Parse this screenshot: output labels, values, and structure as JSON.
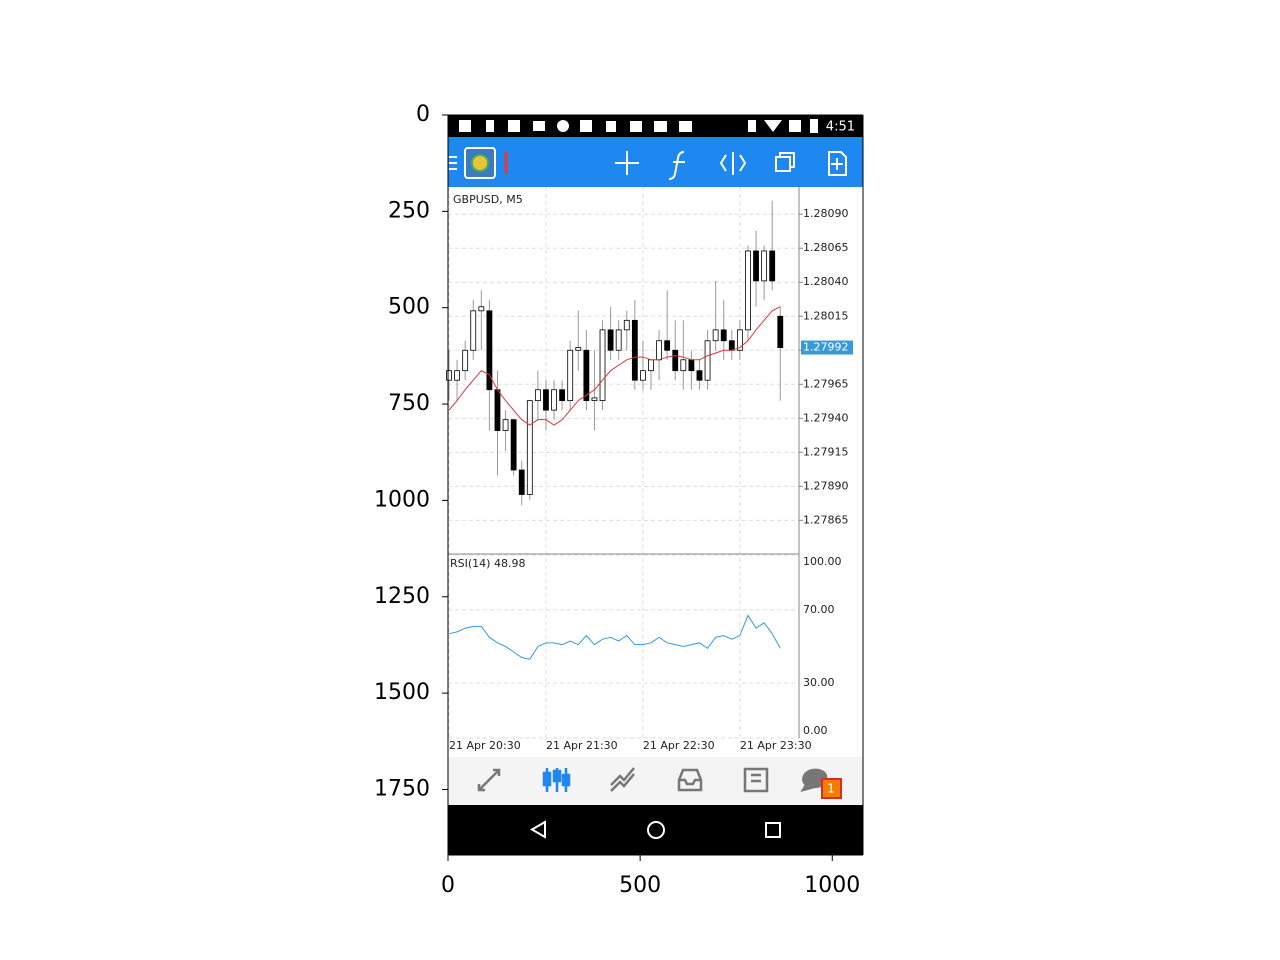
{
  "frame": {
    "xlim": [
      0,
      1080
    ],
    "ylim": [
      1920,
      0
    ],
    "xticks": [
      0,
      500,
      1000
    ],
    "yticks": [
      0,
      250,
      500,
      750,
      1000,
      1250,
      1500,
      1750
    ]
  },
  "status_bar": {
    "time": "4:51"
  },
  "chart": {
    "symbol": "GBPUSD, M5",
    "ylim": [
      1.27841,
      1.2811
    ],
    "yticks": [
      {
        "value": 1.2809,
        "label": "1.28090"
      },
      {
        "value": 1.28065,
        "label": "1.28065"
      },
      {
        "value": 1.2804,
        "label": "1.28040"
      },
      {
        "value": 1.28015,
        "label": "1.28015"
      },
      {
        "value": 1.2799,
        "label": "1.27990"
      },
      {
        "value": 1.27965,
        "label": "1.27965"
      },
      {
        "value": 1.2794,
        "label": "1.27940"
      },
      {
        "value": 1.27915,
        "label": "1.27915"
      },
      {
        "value": 1.2789,
        "label": "1.27890"
      },
      {
        "value": 1.27865,
        "label": "1.27865"
      }
    ],
    "current_price": 1.27992,
    "categories": [
      "21 Apr 20:30",
      null,
      null,
      null,
      null,
      null,
      null,
      null,
      null,
      null,
      null,
      null,
      "21 Apr 21:30",
      null,
      null,
      null,
      null,
      null,
      null,
      null,
      null,
      null,
      null,
      null,
      "21 Apr 22:30",
      null,
      null,
      null,
      null,
      null,
      null,
      null,
      null,
      null,
      null,
      null,
      "21 Apr 23:30",
      null,
      null,
      null,
      null,
      null
    ],
    "candles": [
      [
        1.27968,
        1.2799,
        1.27953,
        1.27975
      ],
      [
        1.27968,
        1.27983,
        1.27953,
        1.27975
      ],
      [
        1.27975,
        1.27997,
        1.27968,
        1.2799
      ],
      [
        1.2799,
        1.28027,
        1.27983,
        1.28019
      ],
      [
        1.28019,
        1.28034,
        1.2799,
        1.28022
      ],
      [
        1.28019,
        1.28027,
        1.27931,
        1.27961
      ],
      [
        1.27961,
        1.27975,
        1.27898,
        1.27931
      ],
      [
        1.27931,
        1.27946,
        1.27916,
        1.27939
      ],
      [
        1.27939,
        1.27939,
        1.27898,
        1.27902
      ],
      [
        1.27902,
        1.27909,
        1.27876,
        1.27884
      ],
      [
        1.27884,
        1.27953,
        1.2788,
        1.27953
      ],
      [
        1.27953,
        1.27975,
        1.27939,
        1.27961
      ],
      [
        1.27961,
        1.27968,
        1.27931,
        1.27946
      ],
      [
        1.27946,
        1.27968,
        1.27939,
        1.27961
      ],
      [
        1.27961,
        1.27968,
        1.27946,
        1.27953
      ],
      [
        1.27953,
        1.27997,
        1.27946,
        1.2799
      ],
      [
        1.2799,
        1.28019,
        1.27975,
        1.27992
      ],
      [
        1.2799,
        1.28005,
        1.27946,
        1.27953
      ],
      [
        1.27953,
        1.2799,
        1.27931,
        1.27955
      ],
      [
        1.27953,
        1.28012,
        1.27946,
        1.28005
      ],
      [
        1.28005,
        1.28022,
        1.27983,
        1.2799
      ],
      [
        1.2799,
        1.28012,
        1.27983,
        1.28005
      ],
      [
        1.28005,
        1.28019,
        1.2799,
        1.28012
      ],
      [
        1.28012,
        1.28027,
        1.27961,
        1.27968
      ],
      [
        1.27968,
        1.27997,
        1.27961,
        1.27975
      ],
      [
        1.27975,
        1.27983,
        1.27961,
        1.27983
      ],
      [
        1.27983,
        1.28005,
        1.27968,
        1.27997
      ],
      [
        1.27997,
        1.28034,
        1.27983,
        1.2799
      ],
      [
        1.2799,
        1.28012,
        1.27968,
        1.27975
      ],
      [
        1.27975,
        1.28012,
        1.27961,
        1.27983
      ],
      [
        1.27983,
        1.2799,
        1.27961,
        1.27975
      ],
      [
        1.27975,
        1.27983,
        1.27961,
        1.27968
      ],
      [
        1.27968,
        1.28005,
        1.27961,
        1.27997
      ],
      [
        1.27997,
        1.28041,
        1.2799,
        1.28005
      ],
      [
        1.28005,
        1.28027,
        1.27983,
        1.27997
      ],
      [
        1.27997,
        1.28005,
        1.27983,
        1.2799
      ],
      [
        1.2799,
        1.28012,
        1.27983,
        1.28005
      ],
      [
        1.28005,
        1.28067,
        1.27997,
        1.28063
      ],
      [
        1.28063,
        1.28078,
        1.28022,
        1.28041
      ],
      [
        1.28041,
        1.28067,
        1.28027,
        1.28063
      ],
      [
        1.28063,
        1.281,
        1.28034,
        1.28041
      ],
      [
        1.28015,
        1.28022,
        1.27953,
        1.27992
      ]
    ],
    "ma": [
      1.27946,
      1.27953,
      1.27961,
      1.27968,
      1.27975,
      1.27972,
      1.27961,
      1.27953,
      1.27946,
      1.27939,
      1.27935,
      1.27939,
      1.27939,
      1.27935,
      1.27939,
      1.27946,
      1.27953,
      1.27957,
      1.27961,
      1.27968,
      1.27975,
      1.27979,
      1.27983,
      1.27985,
      1.27985,
      1.27983,
      1.27983,
      1.27985,
      1.27986,
      1.27985,
      1.27983,
      1.27983,
      1.27986,
      1.27988,
      1.2799,
      1.2799,
      1.27992,
      1.27997,
      1.28005,
      1.28012,
      1.28019,
      1.28022
    ],
    "ma_color": "#d9363e",
    "bull_color": "#ffffff",
    "bear_color": "#000000",
    "rsi": {
      "label": "RSI(14) 48.98",
      "color": "#3a9ad9",
      "ylim": [
        0,
        100
      ],
      "yticks": [
        {
          "value": 100,
          "label": "100.00"
        },
        {
          "value": 70,
          "label": "70.00"
        },
        {
          "value": 30,
          "label": "30.00"
        },
        {
          "value": 0,
          "label": "0.00"
        }
      ],
      "values": [
        57,
        58,
        60,
        61,
        61,
        55,
        52,
        50,
        47,
        44,
        43,
        50,
        52,
        52,
        51,
        53,
        51,
        56,
        51,
        54,
        55,
        53,
        56,
        51,
        51,
        52,
        55,
        52,
        51,
        50,
        51,
        52,
        49,
        55,
        56,
        54,
        56,
        67,
        60,
        63,
        57,
        48.98
      ]
    }
  },
  "bottom_nav": {
    "badge": "1"
  }
}
